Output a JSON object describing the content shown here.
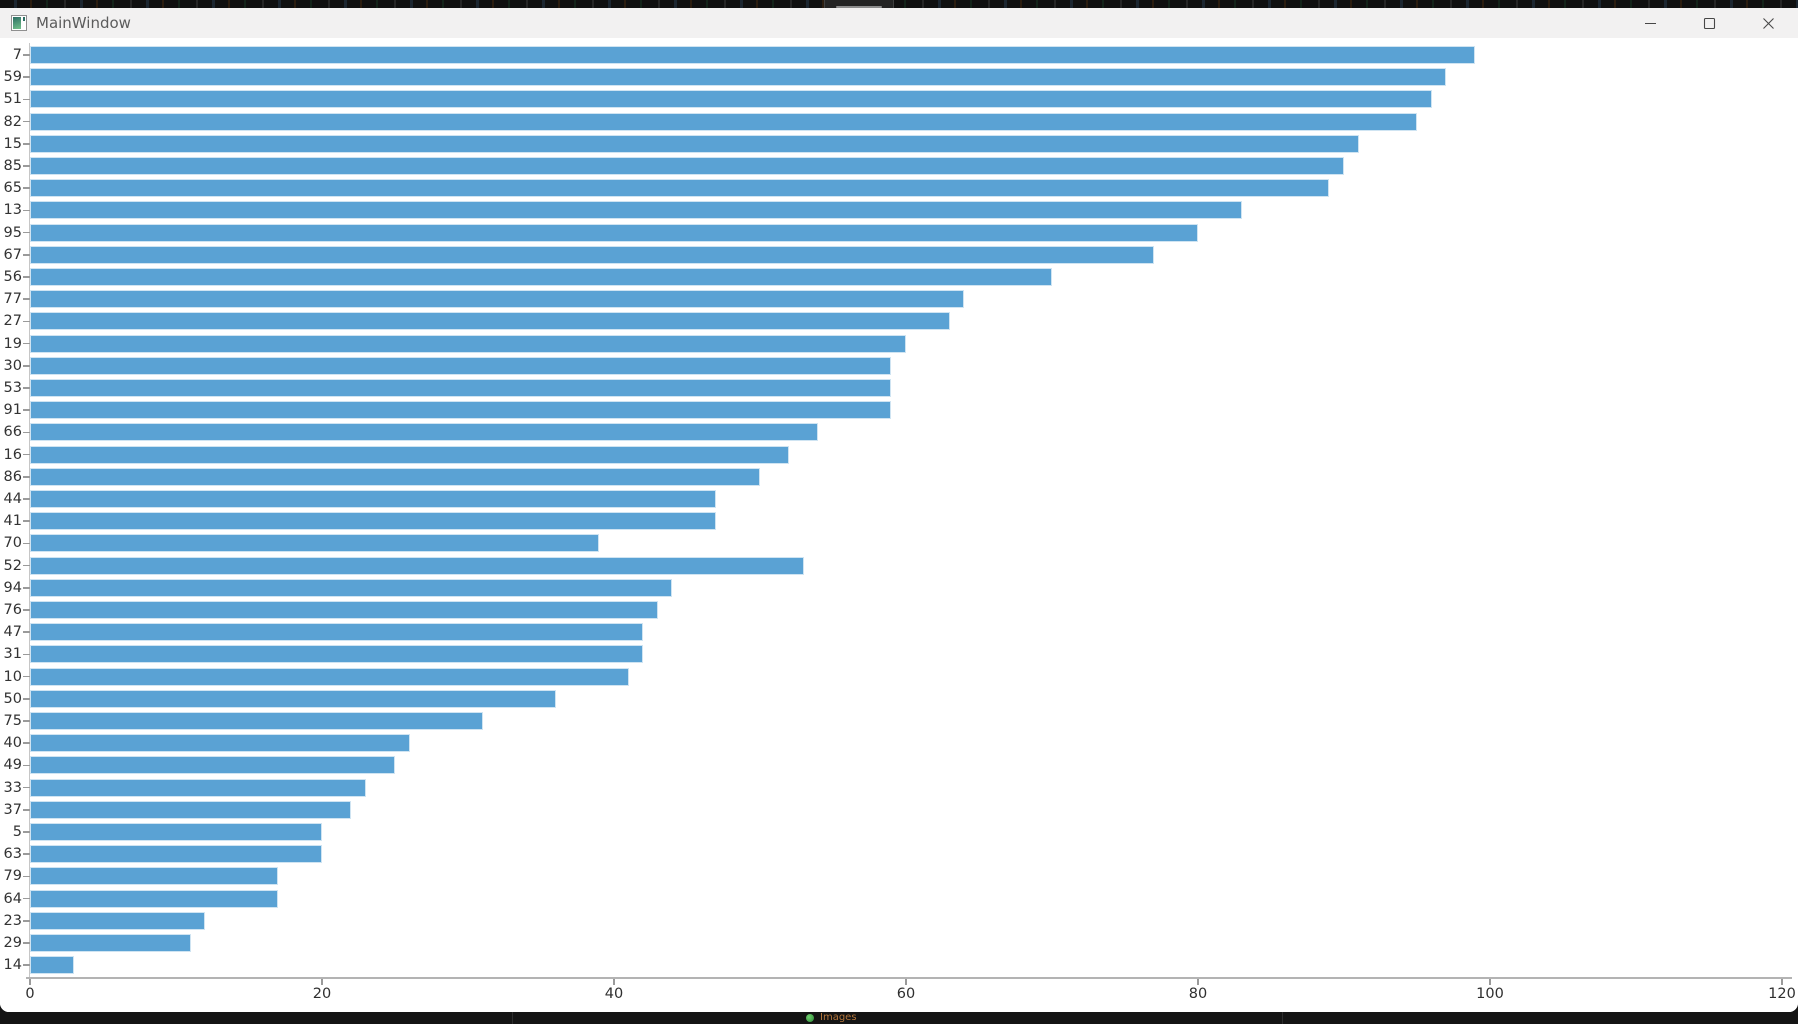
{
  "window": {
    "title": "MainWindow",
    "controls": {
      "minimize": "minimize",
      "maximize": "maximize",
      "close": "close"
    }
  },
  "desktop": {
    "taskbar_item": "Images"
  },
  "chart_data": {
    "type": "bar",
    "orientation": "horizontal",
    "title": "",
    "xlabel": "",
    "ylabel": "",
    "categories": [
      "7",
      "59",
      "51",
      "82",
      "15",
      "85",
      "65",
      "13",
      "95",
      "67",
      "56",
      "77",
      "27",
      "19",
      "30",
      "53",
      "91",
      "66",
      "16",
      "86",
      "44",
      "41",
      "70",
      "52",
      "94",
      "76",
      "47",
      "31",
      "10",
      "50",
      "75",
      "40",
      "49",
      "33",
      "37",
      "5",
      "63",
      "79",
      "64",
      "23",
      "29",
      "14"
    ],
    "values": [
      99,
      97,
      96,
      95,
      91,
      90,
      89,
      83,
      80,
      77,
      70,
      64,
      63,
      60,
      59,
      59,
      59,
      54,
      52,
      50,
      47,
      47,
      39,
      53,
      44,
      43,
      42,
      42,
      41,
      36,
      31,
      26,
      25,
      23,
      22,
      20,
      20,
      17,
      17,
      12,
      11,
      3
    ],
    "xlim": [
      0,
      120
    ],
    "x_ticks": [
      0,
      20,
      40,
      60,
      80,
      100,
      120
    ],
    "grid": false,
    "legend": null,
    "bar_color": "#5AA2D4",
    "bar_edge_color": "#CFE4F2"
  }
}
